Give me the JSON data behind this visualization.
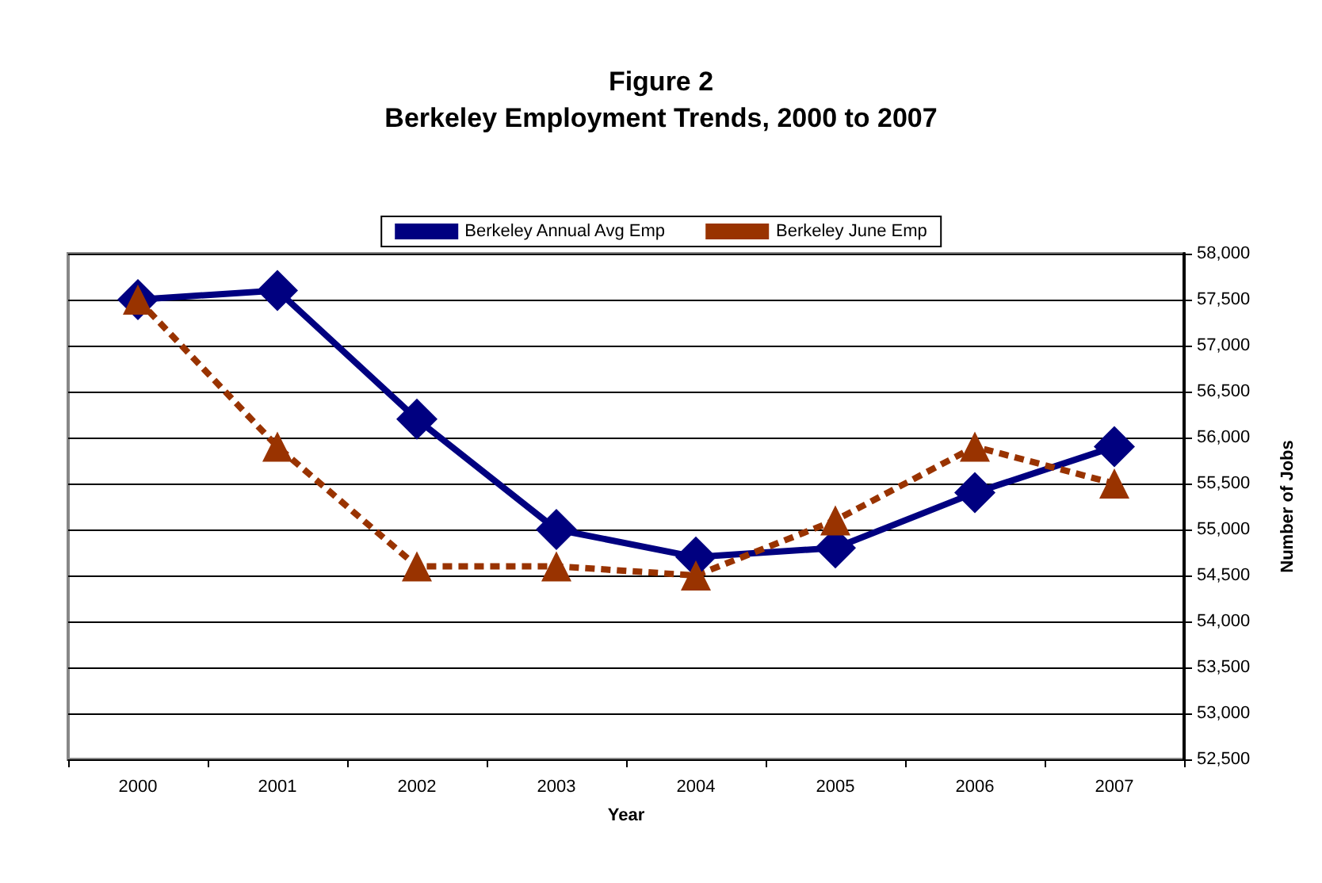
{
  "chart_data": {
    "type": "line",
    "title": "Figure 2",
    "subtitle": "Berkeley Employment Trends, 2000 to 2007",
    "xlabel": "Year",
    "ylabel": "Number of Jobs",
    "categories": [
      "2000",
      "2001",
      "2002",
      "2003",
      "2004",
      "2005",
      "2006",
      "2007"
    ],
    "series": [
      {
        "name": "Berkeley Annual Avg Emp",
        "color": "#000080",
        "marker": "diamond",
        "line_style": "solid",
        "values": [
          57500,
          57600,
          56200,
          55000,
          54700,
          54800,
          55400,
          55900
        ]
      },
      {
        "name": "Berkeley June Emp",
        "color": "#993300",
        "marker": "triangle",
        "line_style": "dashed",
        "values": [
          57500,
          55900,
          54600,
          54600,
          54500,
          55100,
          55900,
          55500
        ]
      }
    ],
    "ylim": [
      52500,
      58000
    ],
    "yticks": [
      {
        "value": 52500,
        "label": "52,500"
      },
      {
        "value": 53000,
        "label": "53,000"
      },
      {
        "value": 53500,
        "label": "53,500"
      },
      {
        "value": 54000,
        "label": "54,000"
      },
      {
        "value": 54500,
        "label": "54,500"
      },
      {
        "value": 55000,
        "label": "55,000"
      },
      {
        "value": 55500,
        "label": "55,500"
      },
      {
        "value": 56000,
        "label": "56,000"
      },
      {
        "value": 56500,
        "label": "56,500"
      },
      {
        "value": 57000,
        "label": "57,000"
      },
      {
        "value": 57500,
        "label": "57,500"
      },
      {
        "value": 58000,
        "label": "58,000"
      }
    ],
    "grid": "y",
    "legend": "top"
  }
}
